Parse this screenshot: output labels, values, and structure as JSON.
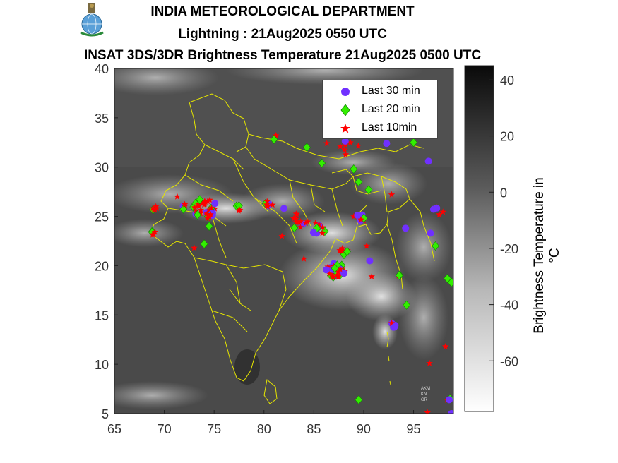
{
  "header": {
    "org": "INDIA METEOROLOGICAL DEPARTMENT",
    "product": "Lightning : 21Aug2025 0550 UTC",
    "image_title": "INSAT 3DS/3DR Brightness Temperature 21Aug2025   0500 UTC",
    "logo_icon": "imd-emblem-icon"
  },
  "map": {
    "x_ticks": [
      "65",
      "70",
      "75",
      "80",
      "85",
      "90",
      "95"
    ],
    "y_ticks": [
      "40",
      "35",
      "30",
      "25",
      "20",
      "15",
      "10",
      "5"
    ],
    "lon_range": [
      65,
      99
    ],
    "lat_range": [
      5,
      40
    ]
  },
  "legend": {
    "items": [
      {
        "label": "Last 30 min",
        "symbol": "circle",
        "color": "#7030ff"
      },
      {
        "label": "Last 20 min",
        "symbol": "diamond",
        "color": "#33ee00"
      },
      {
        "label": "Last 10min",
        "symbol": "star",
        "color": "#ff0000"
      }
    ]
  },
  "colorbar": {
    "label": "Brightness Temperature in  °C",
    "ticks": [
      "40",
      "20",
      "0",
      "-20",
      "-40",
      "-60"
    ],
    "range": [
      -78,
      45
    ]
  },
  "attribution": [
    "AKM",
    "KN",
    "GR"
  ],
  "lightning": {
    "clusters": [
      {
        "lon": 74.0,
        "lat": 25.8,
        "n": 40,
        "spread": 1.3
      },
      {
        "lon": 69.1,
        "lat": 25.8,
        "n": 6,
        "spread": 0.3
      },
      {
        "lon": 68.9,
        "lat": 23.3,
        "n": 5,
        "spread": 0.3
      },
      {
        "lon": 72.0,
        "lat": 26.0,
        "n": 6,
        "spread": 0.4
      },
      {
        "lon": 77.5,
        "lat": 25.8,
        "n": 6,
        "spread": 0.4
      },
      {
        "lon": 80.5,
        "lat": 26.3,
        "n": 7,
        "spread": 0.5
      },
      {
        "lon": 83.5,
        "lat": 24.5,
        "n": 12,
        "spread": 1.0
      },
      {
        "lon": 85.5,
        "lat": 23.8,
        "n": 10,
        "spread": 0.8
      },
      {
        "lon": 87.2,
        "lat": 19.5,
        "n": 45,
        "spread": 1.0
      },
      {
        "lon": 88.0,
        "lat": 21.5,
        "n": 8,
        "spread": 0.5
      },
      {
        "lon": 89.5,
        "lat": 24.8,
        "n": 8,
        "spread": 0.6
      },
      {
        "lon": 88.5,
        "lat": 32.0,
        "n": 7,
        "spread": 1.0
      },
      {
        "lon": 93.0,
        "lat": 14.0,
        "n": 6,
        "spread": 0.4
      },
      {
        "lon": 93.5,
        "lat": 19.0,
        "n": 3,
        "spread": 0.2
      },
      {
        "lon": 97.5,
        "lat": 25.5,
        "n": 5,
        "spread": 0.6
      },
      {
        "lon": 98.5,
        "lat": 6.5,
        "n": 3,
        "spread": 0.3
      }
    ],
    "singles": [
      {
        "lon": 81.2,
        "lat": 33.2,
        "t": "star"
      },
      {
        "lon": 81.0,
        "lat": 32.8,
        "t": "diamond"
      },
      {
        "lon": 84.3,
        "lat": 32.0,
        "t": "diamond"
      },
      {
        "lon": 85.8,
        "lat": 30.4,
        "t": "diamond"
      },
      {
        "lon": 86.3,
        "lat": 32.4,
        "t": "star"
      },
      {
        "lon": 87.5,
        "lat": 33.5,
        "t": "star"
      },
      {
        "lon": 89.0,
        "lat": 29.8,
        "t": "diamond"
      },
      {
        "lon": 89.5,
        "lat": 28.5,
        "t": "diamond"
      },
      {
        "lon": 90.5,
        "lat": 27.7,
        "t": "diamond"
      },
      {
        "lon": 92.3,
        "lat": 32.4,
        "t": "circle"
      },
      {
        "lon": 96.5,
        "lat": 30.6,
        "t": "circle"
      },
      {
        "lon": 95.0,
        "lat": 32.5,
        "t": "diamond"
      },
      {
        "lon": 92.8,
        "lat": 27.2,
        "t": "star"
      },
      {
        "lon": 94.2,
        "lat": 23.8,
        "t": "circle"
      },
      {
        "lon": 96.7,
        "lat": 23.3,
        "t": "circle"
      },
      {
        "lon": 97.2,
        "lat": 22.0,
        "t": "diamond"
      },
      {
        "lon": 90.3,
        "lat": 22.0,
        "t": "star"
      },
      {
        "lon": 90.6,
        "lat": 20.5,
        "t": "circle"
      },
      {
        "lon": 90.8,
        "lat": 18.9,
        "t": "star"
      },
      {
        "lon": 84.0,
        "lat": 20.7,
        "t": "star"
      },
      {
        "lon": 94.3,
        "lat": 16.0,
        "t": "diamond"
      },
      {
        "lon": 98.4,
        "lat": 18.7,
        "t": "diamond"
      },
      {
        "lon": 98.8,
        "lat": 18.3,
        "t": "diamond"
      },
      {
        "lon": 98.2,
        "lat": 11.8,
        "t": "star"
      },
      {
        "lon": 96.6,
        "lat": 10.1,
        "t": "star"
      },
      {
        "lon": 96.4,
        "lat": 5.1,
        "t": "star"
      },
      {
        "lon": 98.8,
        "lat": 5.0,
        "t": "circle"
      },
      {
        "lon": 89.5,
        "lat": 6.4,
        "t": "diamond"
      },
      {
        "lon": 74.0,
        "lat": 22.2,
        "t": "diamond"
      },
      {
        "lon": 71.3,
        "lat": 27.0,
        "t": "star"
      },
      {
        "lon": 81.8,
        "lat": 23.0,
        "t": "star"
      },
      {
        "lon": 82.0,
        "lat": 25.8,
        "t": "circle"
      },
      {
        "lon": 74.5,
        "lat": 24.0,
        "t": "diamond"
      },
      {
        "lon": 73.0,
        "lat": 21.8,
        "t": "star"
      }
    ]
  }
}
